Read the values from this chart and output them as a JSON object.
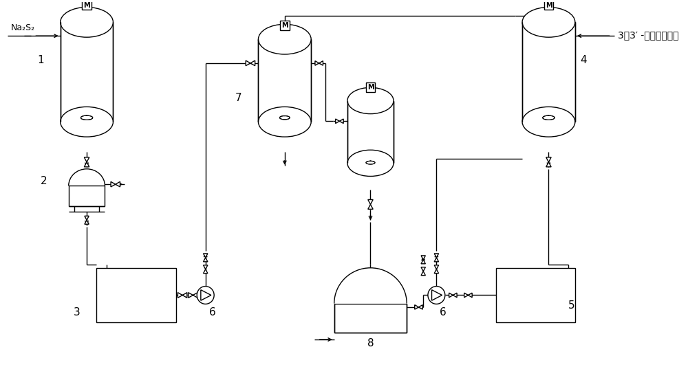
{
  "bg_color": "#ffffff",
  "line_color": "#000000",
  "figsize": [
    10.0,
    5.5
  ],
  "dpi": 100,
  "labels": {
    "na2s2": "Na₂S₂",
    "product": "3，3′ -二础基二苯睐",
    "num1": "1",
    "num2": "2",
    "num3": "3",
    "num4": "4",
    "num5": "5",
    "num6": "6",
    "num7": "7",
    "num8": "8"
  }
}
